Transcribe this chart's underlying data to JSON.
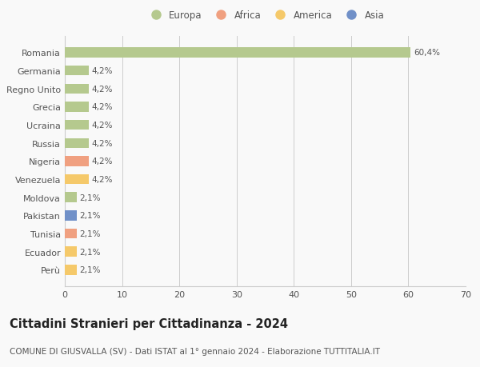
{
  "categories": [
    "Romania",
    "Germania",
    "Regno Unito",
    "Grecia",
    "Ucraina",
    "Russia",
    "Nigeria",
    "Venezuela",
    "Moldova",
    "Pakistan",
    "Tunisia",
    "Ecuador",
    "Perù"
  ],
  "values": [
    60.4,
    4.2,
    4.2,
    4.2,
    4.2,
    4.2,
    4.2,
    4.2,
    2.1,
    2.1,
    2.1,
    2.1,
    2.1
  ],
  "labels": [
    "60,4%",
    "4,2%",
    "4,2%",
    "4,2%",
    "4,2%",
    "4,2%",
    "4,2%",
    "4,2%",
    "2,1%",
    "2,1%",
    "2,1%",
    "2,1%",
    "2,1%"
  ],
  "colors": [
    "#b5c98e",
    "#b5c98e",
    "#b5c98e",
    "#b5c98e",
    "#b5c98e",
    "#b5c98e",
    "#f0a080",
    "#f5c96a",
    "#b5c98e",
    "#7090c8",
    "#f0a080",
    "#f5c96a",
    "#f5c96a"
  ],
  "legend_labels": [
    "Europa",
    "Africa",
    "America",
    "Asia"
  ],
  "legend_colors": [
    "#b5c98e",
    "#f0a080",
    "#f5c96a",
    "#7090c8"
  ],
  "xlim": [
    0,
    70
  ],
  "xticks": [
    0,
    10,
    20,
    30,
    40,
    50,
    60,
    70
  ],
  "title": "Cittadini Stranieri per Cittadinanza - 2024",
  "subtitle": "COMUNE DI GIUSVALLA (SV) - Dati ISTAT al 1° gennaio 2024 - Elaborazione TUTTITALIA.IT",
  "bg_color": "#f9f9f9",
  "grid_color": "#cccccc",
  "bar_height": 0.55,
  "title_fontsize": 10.5,
  "subtitle_fontsize": 7.5,
  "label_fontsize": 7.5,
  "tick_fontsize": 8,
  "legend_fontsize": 8.5
}
